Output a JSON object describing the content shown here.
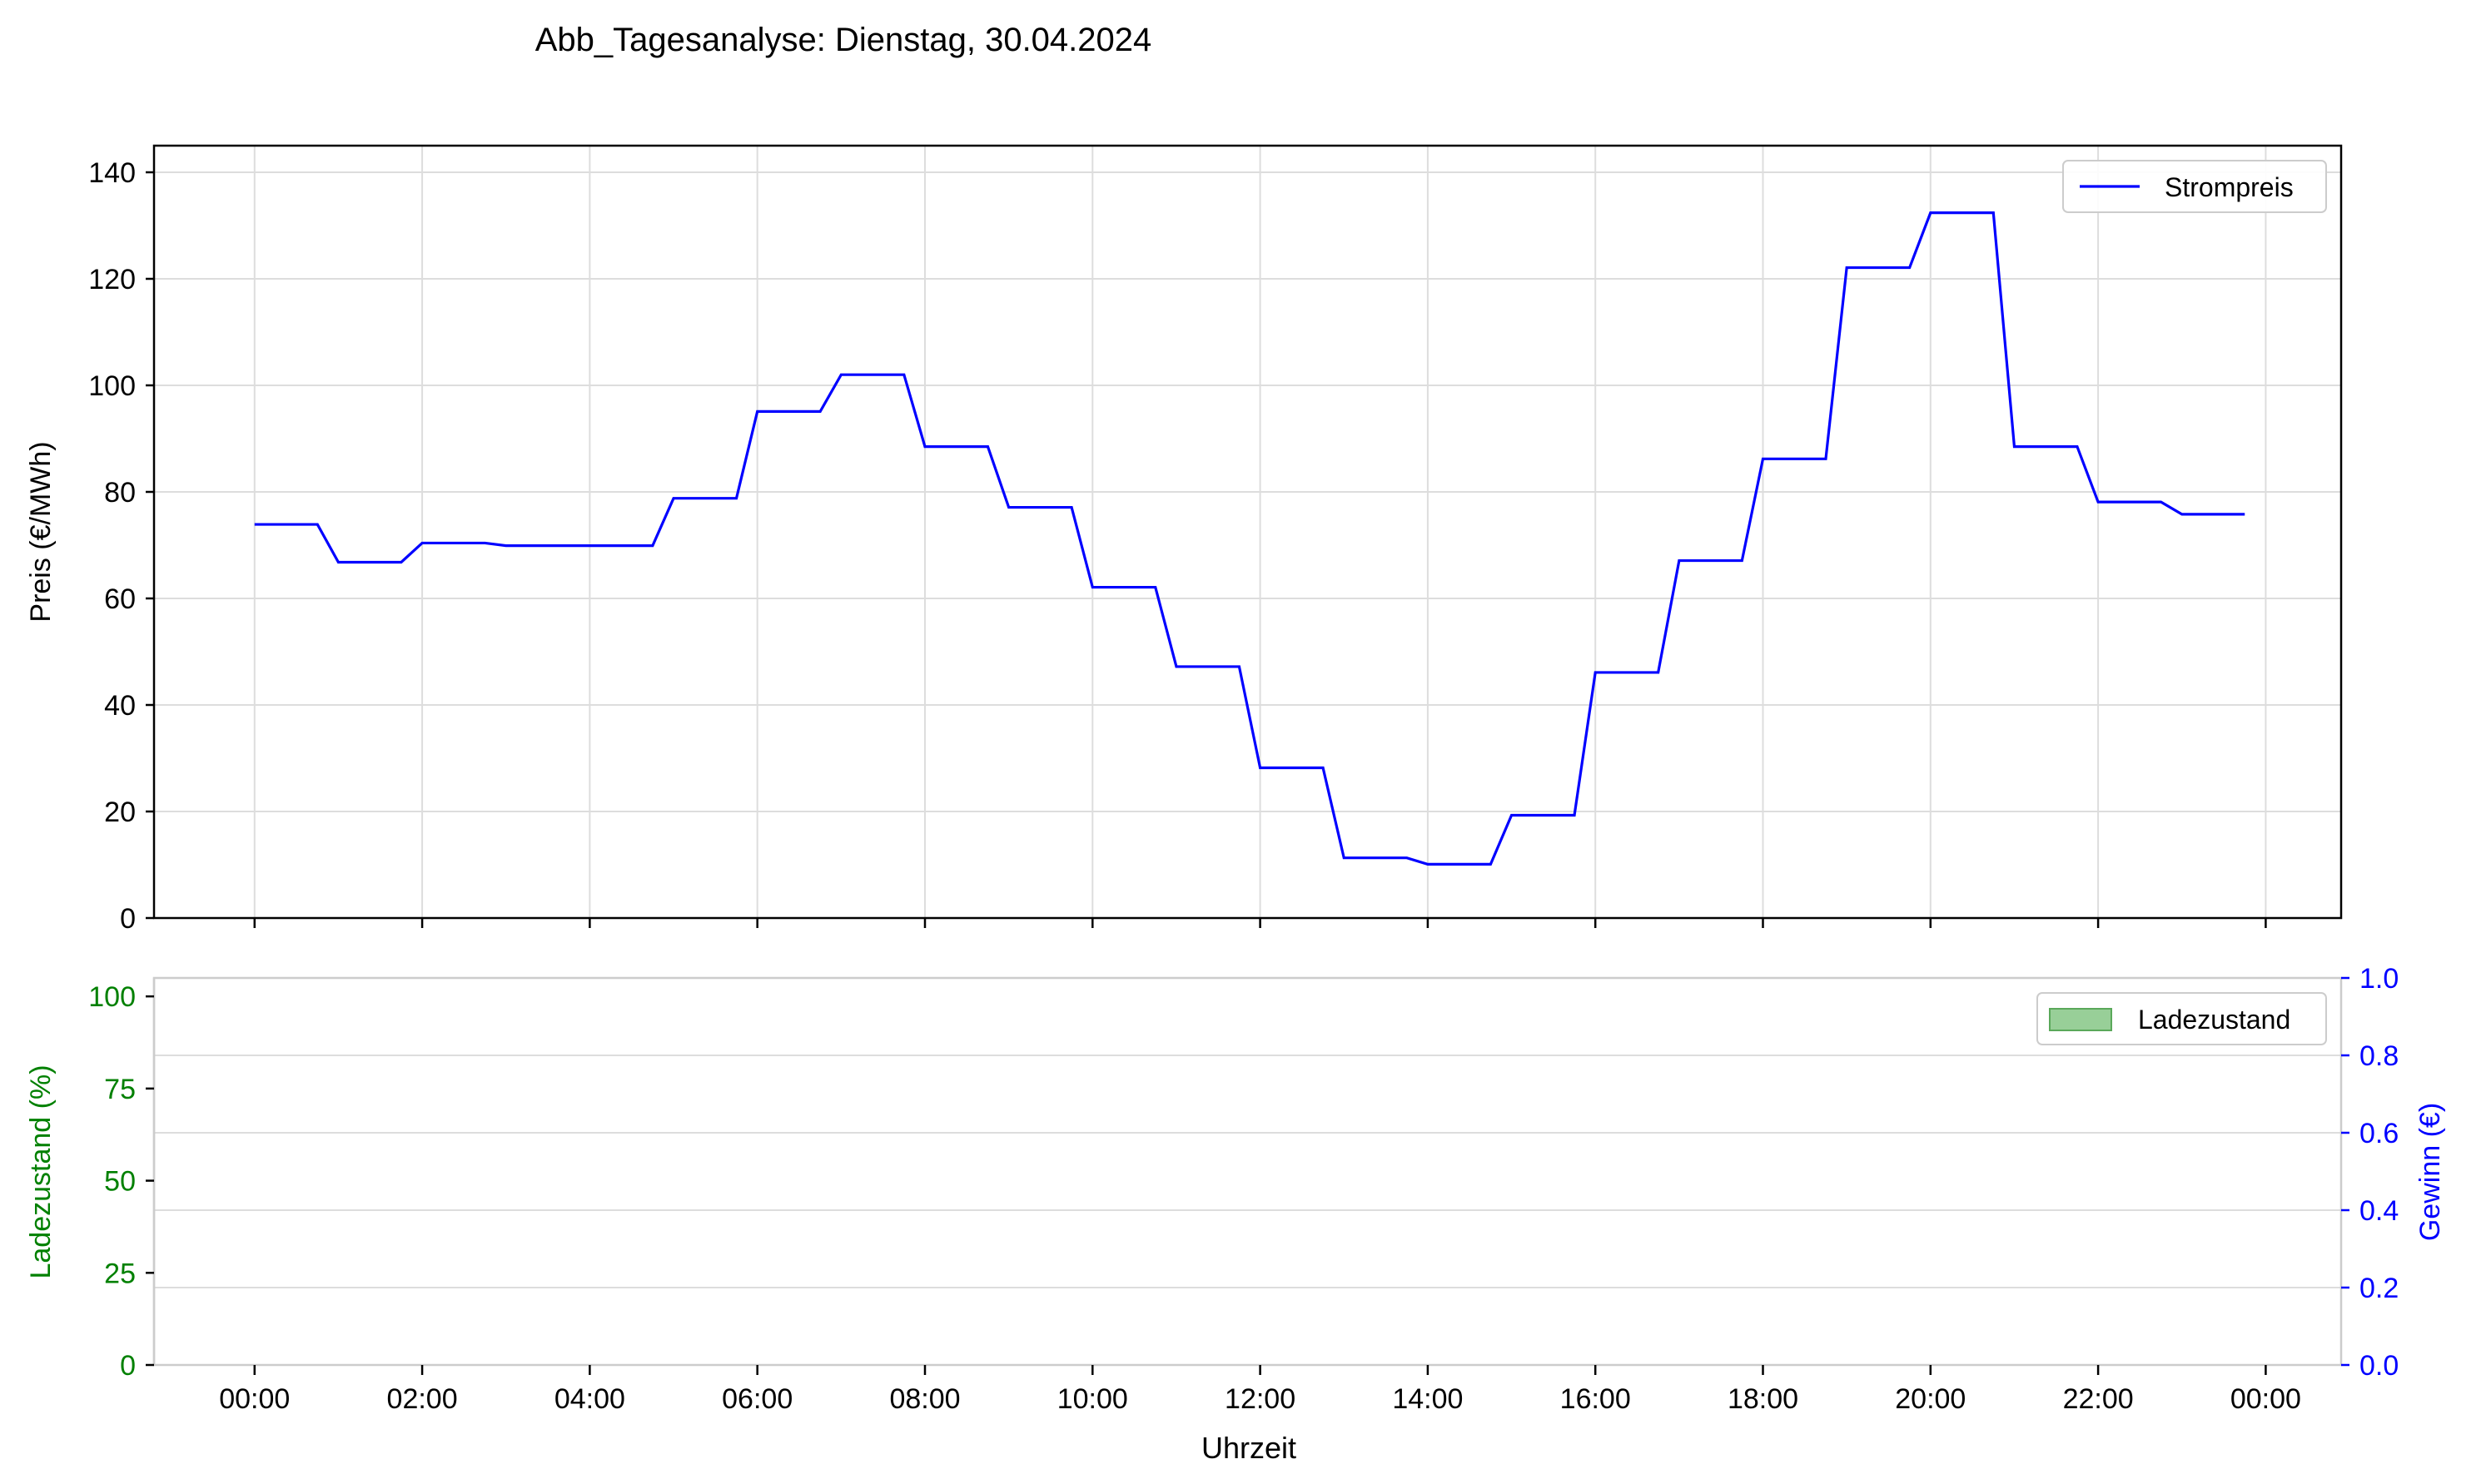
{
  "figure": {
    "title": "Abb_Tagesanalyse: Dienstag, 30.04.2024"
  },
  "colors": {
    "price_line": "#0000ff",
    "soc_axis": "#008000",
    "profit_axis": "#0000ff",
    "soc_fill": "#98cf98",
    "soc_fill_edge": "#5aa85a",
    "grid": "#dddddd",
    "axis": "#000000",
    "spine_light": "#cccccc"
  },
  "chart_data": [
    {
      "type": "line",
      "name": "price-panel",
      "xlabel": "",
      "ylabel": "Preis (€/MWh)",
      "ylim": [
        0,
        145
      ],
      "yticks": [
        0,
        20,
        40,
        60,
        80,
        100,
        120,
        140
      ],
      "xlim_hours": [
        -1.2,
        24.9
      ],
      "xticks_hours": [
        0,
        2,
        4,
        6,
        8,
        10,
        12,
        14,
        16,
        18,
        20,
        22,
        24
      ],
      "grid": true,
      "legend": {
        "position": "top-right",
        "entries": [
          "Strompreis"
        ]
      },
      "series": [
        {
          "name": "Strompreis",
          "step_hours": 0.25,
          "points": [
            [
              0.0,
              73.9
            ],
            [
              0.75,
              73.9
            ],
            [
              1.0,
              66.8
            ],
            [
              1.75,
              66.8
            ],
            [
              2.0,
              70.4
            ],
            [
              2.75,
              70.4
            ],
            [
              3.0,
              69.9
            ],
            [
              3.75,
              69.9
            ],
            [
              4.0,
              69.9
            ],
            [
              4.75,
              69.9
            ],
            [
              5.0,
              78.8
            ],
            [
              5.75,
              78.8
            ],
            [
              6.0,
              95.1
            ],
            [
              6.75,
              95.1
            ],
            [
              7.0,
              102.0
            ],
            [
              7.75,
              102.0
            ],
            [
              8.0,
              88.5
            ],
            [
              8.75,
              88.5
            ],
            [
              9.0,
              77.1
            ],
            [
              9.75,
              77.1
            ],
            [
              10.0,
              62.1
            ],
            [
              10.75,
              62.1
            ],
            [
              11.0,
              47.2
            ],
            [
              11.75,
              47.2
            ],
            [
              12.0,
              28.2
            ],
            [
              12.75,
              28.2
            ],
            [
              13.0,
              11.3
            ],
            [
              13.75,
              11.3
            ],
            [
              14.0,
              10.1
            ],
            [
              14.75,
              10.1
            ],
            [
              15.0,
              19.3
            ],
            [
              15.75,
              19.3
            ],
            [
              16.0,
              46.1
            ],
            [
              16.75,
              46.1
            ],
            [
              17.0,
              67.1
            ],
            [
              17.75,
              67.1
            ],
            [
              18.0,
              86.2
            ],
            [
              18.75,
              86.2
            ],
            [
              19.0,
              122.1
            ],
            [
              19.75,
              122.1
            ],
            [
              20.0,
              132.4
            ],
            [
              20.75,
              132.4
            ],
            [
              21.0,
              88.5
            ],
            [
              21.75,
              88.5
            ],
            [
              22.0,
              78.1
            ],
            [
              22.75,
              78.1
            ],
            [
              23.0,
              75.8
            ],
            [
              23.75,
              75.8
            ]
          ]
        }
      ]
    },
    {
      "type": "area",
      "name": "soc-panel",
      "xlabel": "Uhrzeit",
      "ylabel": "Ladezustand (%)",
      "ylabel_right": "Gewinn (€)",
      "ylim": [
        0,
        105
      ],
      "yticks": [
        0,
        25,
        50,
        75,
        100
      ],
      "ylim_right": [
        0.0,
        1.0
      ],
      "yticks_right": [
        "0.0",
        "0.2",
        "0.4",
        "0.6",
        "0.8",
        "1.0"
      ],
      "xlim_hours": [
        -1.2,
        24.9
      ],
      "xticks_hours": [
        0,
        2,
        4,
        6,
        8,
        10,
        12,
        14,
        16,
        18,
        20,
        22,
        24
      ],
      "xtick_labels": [
        "00:00",
        "02:00",
        "04:00",
        "06:00",
        "08:00",
        "10:00",
        "12:00",
        "14:00",
        "16:00",
        "18:00",
        "20:00",
        "22:00",
        "00:00"
      ],
      "grid": true,
      "legend": {
        "position": "top-right",
        "entries": [
          "Ladezustand"
        ]
      },
      "series": [
        {
          "name": "Ladezustand",
          "points": []
        }
      ]
    }
  ]
}
